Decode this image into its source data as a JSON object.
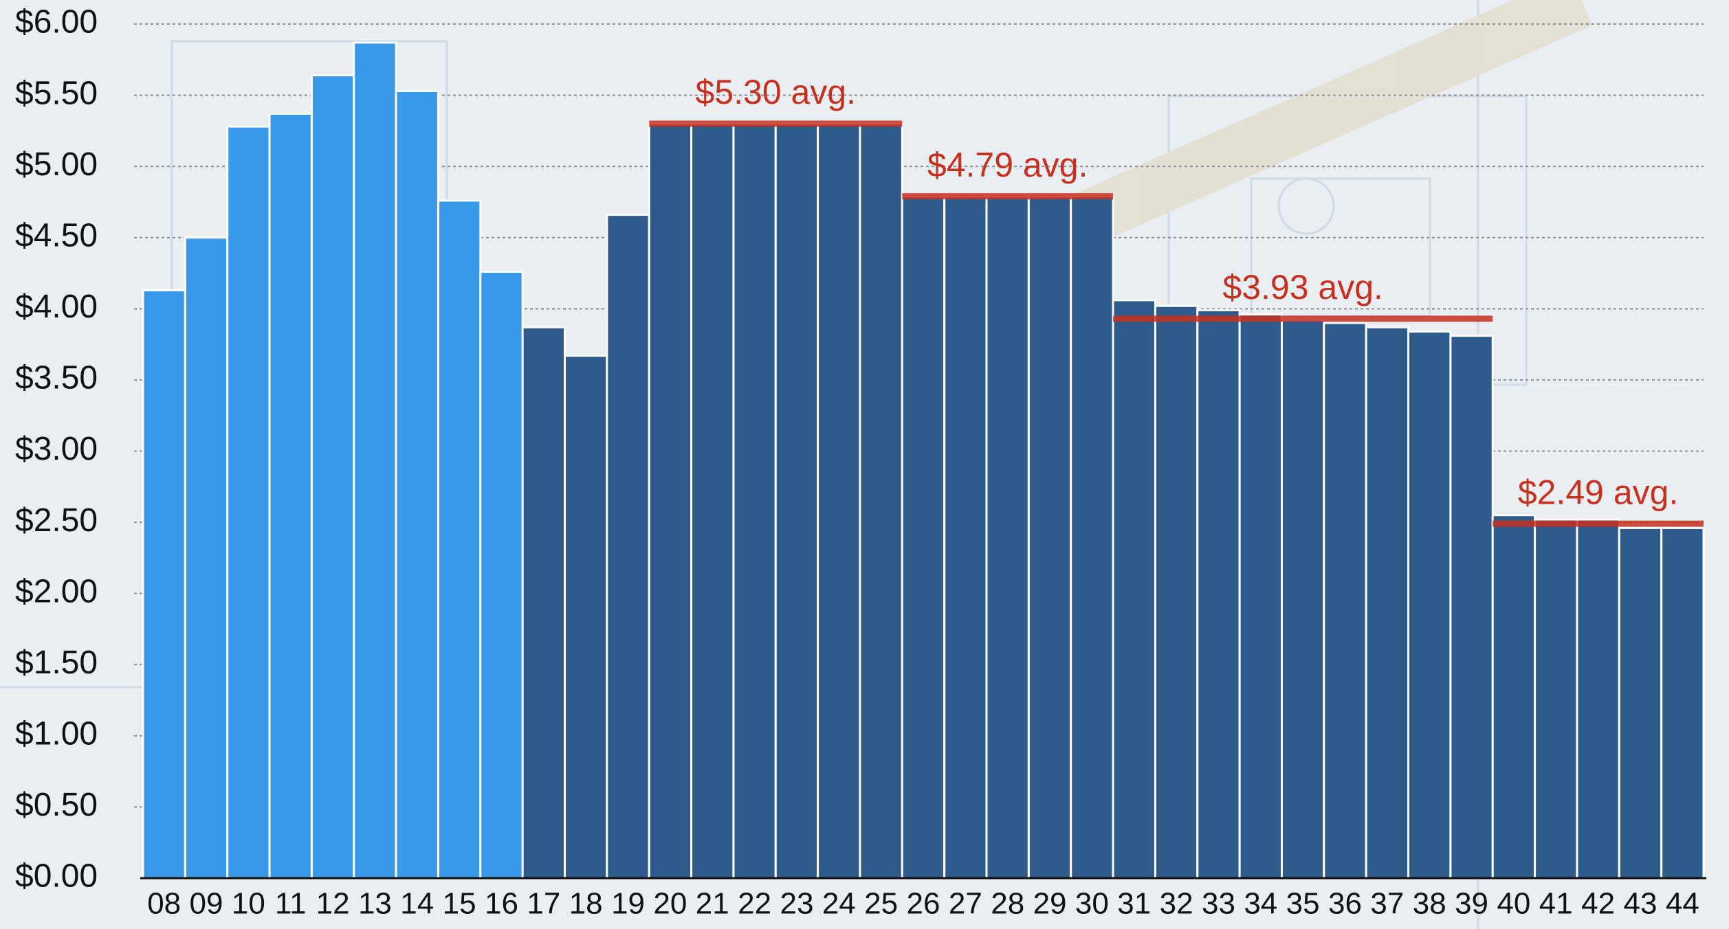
{
  "chart_data": {
    "type": "bar",
    "categories": [
      "08",
      "09",
      "10",
      "11",
      "12",
      "13",
      "14",
      "15",
      "16",
      "17",
      "18",
      "19",
      "20",
      "21",
      "22",
      "23",
      "24",
      "25",
      "26",
      "27",
      "28",
      "29",
      "30",
      "31",
      "32",
      "33",
      "34",
      "35",
      "36",
      "37",
      "38",
      "39",
      "40",
      "41",
      "42",
      "43",
      "44"
    ],
    "values": [
      4.13,
      4.5,
      5.28,
      5.37,
      5.64,
      5.87,
      5.53,
      4.76,
      4.26,
      3.87,
      3.67,
      4.66,
      5.3,
      5.3,
      5.3,
      5.3,
      5.3,
      5.3,
      4.79,
      4.79,
      4.79,
      4.79,
      4.79,
      4.06,
      4.02,
      3.99,
      3.96,
      3.92,
      3.9,
      3.87,
      3.84,
      3.81,
      2.55,
      2.52,
      2.52,
      2.46,
      2.46
    ],
    "colors": [
      "#3a98e8",
      "#3a98e8",
      "#3a98e8",
      "#3a98e8",
      "#3a98e8",
      "#3a98e8",
      "#3a98e8",
      "#3a98e8",
      "#3a98e8",
      "#2e5a8c",
      "#2e5a8c",
      "#2e5a8c",
      "#2e5a8c",
      "#2e5a8c",
      "#2e5a8c",
      "#2e5a8c",
      "#2e5a8c",
      "#2e5a8c",
      "#2e5a8c",
      "#2e5a8c",
      "#2e5a8c",
      "#2e5a8c",
      "#2e5a8c",
      "#2e5a8c",
      "#2e5a8c",
      "#2e5a8c",
      "#2e5a8c",
      "#2e5a8c",
      "#2e5a8c",
      "#2e5a8c",
      "#2e5a8c",
      "#2e5a8c",
      "#2e5a8c",
      "#2e5a8c",
      "#2e5a8c",
      "#2e5a8c",
      "#2e5a8c"
    ],
    "ylim": [
      0,
      6
    ],
    "yticks": [
      {
        "value": 0,
        "label": "$0.00"
      },
      {
        "value": 0.5,
        "label": "$0.50"
      },
      {
        "value": 1,
        "label": "$1.00"
      },
      {
        "value": 1.5,
        "label": "$1.50"
      },
      {
        "value": 2,
        "label": "$2.00"
      },
      {
        "value": 2.5,
        "label": "$2.50"
      },
      {
        "value": 3,
        "label": "$3.00"
      },
      {
        "value": 3.5,
        "label": "$3.50"
      },
      {
        "value": 4,
        "label": "$4.00"
      },
      {
        "value": 4.5,
        "label": "$4.50"
      },
      {
        "value": 5,
        "label": "$5.00"
      },
      {
        "value": 5.5,
        "label": "$5.50"
      },
      {
        "value": 6,
        "label": "$6.00"
      }
    ],
    "grid": true,
    "annotation_color": "#c8301e",
    "annotations": [
      {
        "label": "$5.30 avg.",
        "value": 5.3,
        "from": "20",
        "to": "25"
      },
      {
        "label": "$4.79 avg.",
        "value": 4.79,
        "from": "26",
        "to": "30"
      },
      {
        "label": "$3.93 avg.",
        "value": 3.93,
        "from": "31",
        "to": "39"
      },
      {
        "label": "$2.49 avg.",
        "value": 2.49,
        "from": "40",
        "to": "44"
      }
    ]
  }
}
